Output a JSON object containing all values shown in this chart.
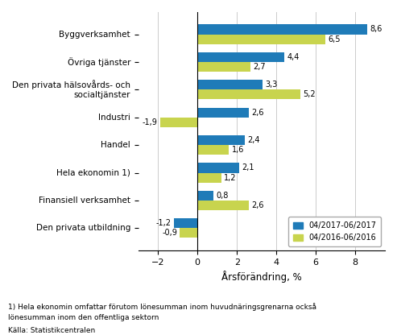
{
  "categories": [
    "Byggverksamhet",
    "Övriga tjänster",
    "Den privata hälsovårds- och\nsocialtjänster",
    "Industri",
    "Handel",
    "Hela ekonomin 1)",
    "Finansiell verksamhet",
    "Den privata utbildning"
  ],
  "series1_label": "04/2017-06/2017",
  "series2_label": "04/2016-06/2016",
  "series1_values": [
    8.6,
    4.4,
    3.3,
    2.6,
    2.4,
    2.1,
    0.8,
    -1.2
  ],
  "series2_values": [
    6.5,
    2.7,
    5.2,
    -1.9,
    1.6,
    1.2,
    2.6,
    -0.9
  ],
  "color1": "#1F7BB8",
  "color2": "#C8D44E",
  "xlabel": "Årsförändring, %",
  "xlim": [
    -3,
    9.5
  ],
  "xticks": [
    -2,
    0,
    2,
    4,
    6,
    8
  ],
  "footnote1": "1) Hela ekonomin omfattar förutom lönesumman inom huvudnäringsgrenarna också",
  "footnote2": "lönesumman inom den offentliga sektorn",
  "footnote3": "Källa: Statistikcentralen",
  "background_color": "#ffffff",
  "bar_height": 0.35,
  "grid_color": "#cccccc"
}
